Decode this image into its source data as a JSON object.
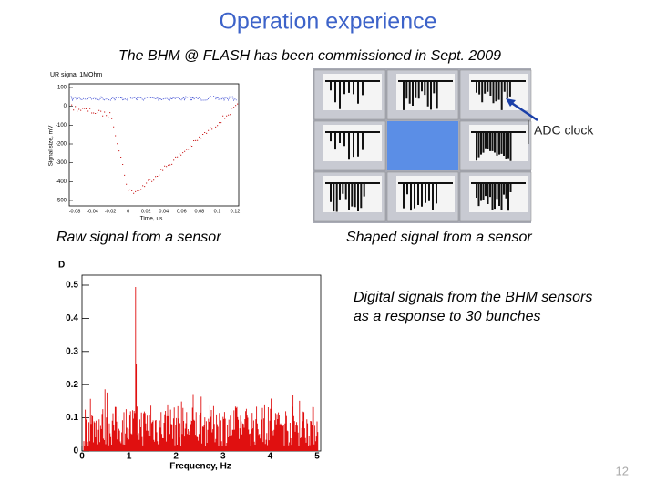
{
  "title": "Operation experience",
  "subtitle": "The BHM @ FLASH has been commissioned in Sept. 2009",
  "raw_plot": {
    "title": "UR signal 1MOhm",
    "ylabel": "Signal size, mV",
    "xlabel": "Time, us",
    "yticks": [
      100,
      0,
      -100,
      -200,
      -300,
      -400,
      -500
    ],
    "xticks": [
      -0.08,
      -0.04,
      -0.02,
      0,
      0.02,
      0.04,
      0.06,
      0.08,
      0.1,
      0.12
    ]
  },
  "annotation": "ADC clock",
  "caption_raw": "Raw signal from a sensor",
  "caption_shaped": "Shaped signal from a sensor",
  "fft_plot": {
    "corner": "D",
    "yticks": [
      0,
      0.1,
      0.2,
      0.3,
      0.4,
      0.5
    ],
    "xticks": [
      0,
      1,
      2,
      3,
      4,
      5
    ],
    "xlabel": "Frequency, Hz"
  },
  "caption_digital": [
    "Digital signals from the BHM sensors",
    "as a response to 30 bunches"
  ],
  "page_number": 12
}
